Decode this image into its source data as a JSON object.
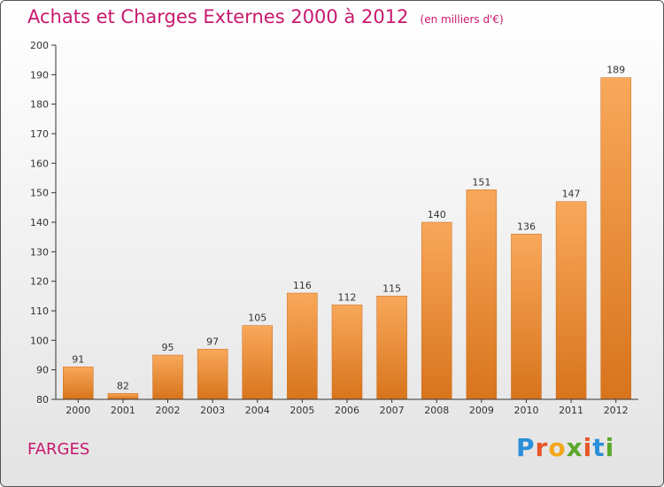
{
  "header": {
    "title": "Achats et Charges Externes 2000 à 2012",
    "subtitle": "(en milliers d'€)"
  },
  "footer": {
    "commune": "FARGES",
    "brand": "Proxiti",
    "brand_colors": [
      "#2a8fd8",
      "#e8562a",
      "#f4a51a",
      "#5aa82a",
      "#e8562a",
      "#2a8fd8",
      "#5aa82a"
    ]
  },
  "chart_data": {
    "type": "bar",
    "title": "Achats et Charges Externes 2000 à 2012",
    "subtitle": "(en milliers d'€)",
    "xlabel": "",
    "ylabel": "",
    "categories": [
      "2000",
      "2001",
      "2002",
      "2003",
      "2004",
      "2005",
      "2006",
      "2007",
      "2008",
      "2009",
      "2010",
      "2011",
      "2012"
    ],
    "values": [
      91,
      82,
      95,
      97,
      105,
      116,
      112,
      115,
      140,
      151,
      136,
      147,
      189
    ],
    "ylim": [
      80,
      200
    ],
    "yticks": [
      80,
      90,
      100,
      110,
      120,
      130,
      140,
      150,
      160,
      170,
      180,
      190,
      200
    ],
    "grid": false,
    "bar_color_top": "#f8a85a",
    "bar_color_bottom": "#d8741c"
  }
}
